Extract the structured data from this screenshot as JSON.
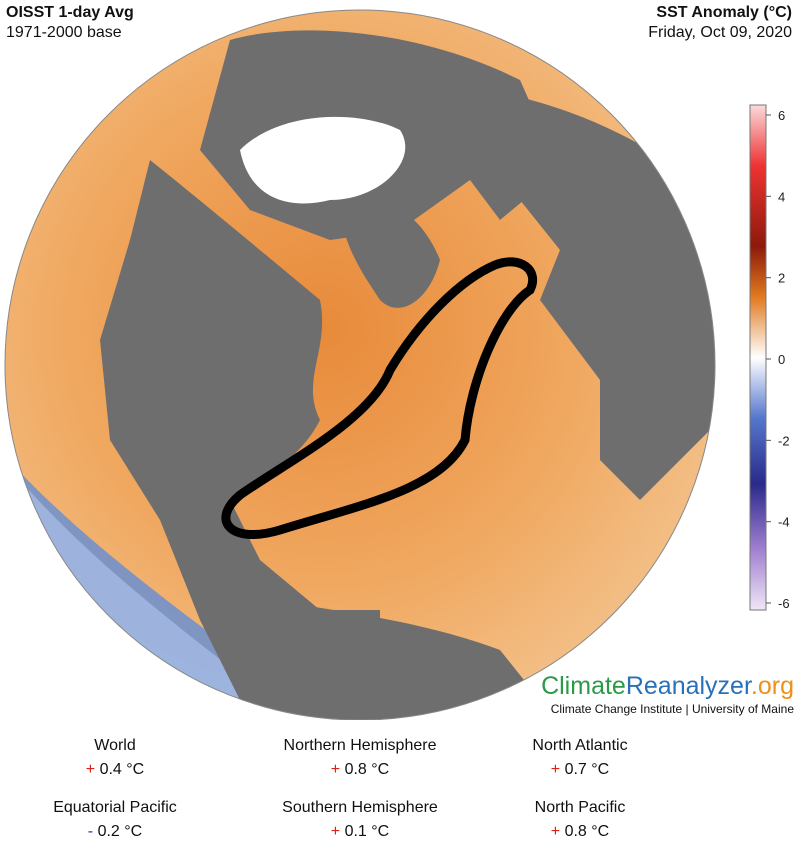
{
  "header": {
    "title": "OISST 1-day Avg",
    "subtitle": "1971-2000 base",
    "right_title": "SST Anomaly (°C)",
    "date": "Friday, Oct 09, 2020"
  },
  "colorbar": {
    "lim": [
      -6,
      6
    ],
    "ticks": [
      6,
      4,
      2,
      0,
      -2,
      -4,
      -6
    ]
  },
  "logo": {
    "part1": "Climate",
    "part2": "Reanalyzer",
    "part3": ".org",
    "credit": "Climate Change Institute | University of Maine"
  },
  "stats": [
    {
      "region": "World",
      "sign": "+",
      "value": "0.4 °C"
    },
    {
      "region": "Northern Hemisphere",
      "sign": "+",
      "value": "0.8 °C"
    },
    {
      "region": "North Atlantic",
      "sign": "+",
      "value": "0.7 °C"
    },
    {
      "region": "Equatorial Pacific",
      "sign": "-",
      "value": "0.2 °C"
    },
    {
      "region": "Southern Hemisphere",
      "sign": "+",
      "value": "0.1 °C"
    },
    {
      "region": "North Pacific",
      "sign": "+",
      "value": "0.8 °C"
    }
  ]
}
